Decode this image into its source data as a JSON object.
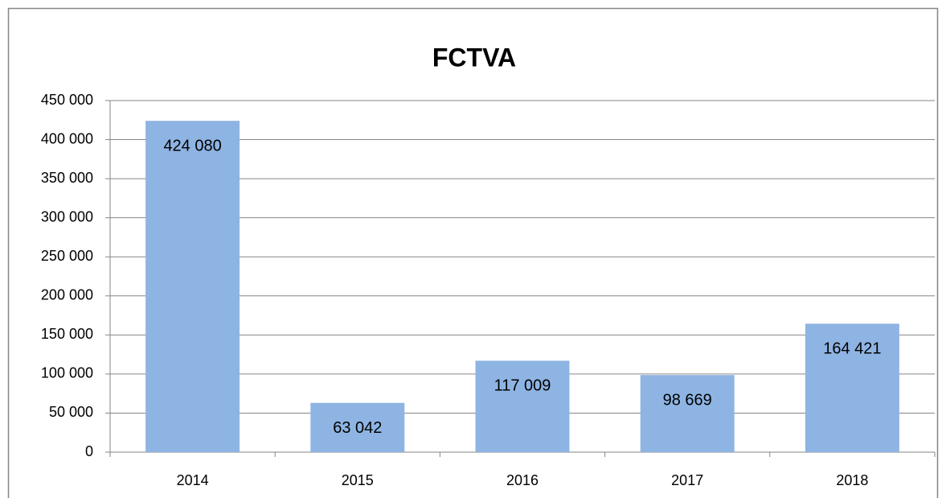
{
  "chart_data": {
    "type": "bar",
    "title": "FCTVA",
    "categories": [
      "2014",
      "2015",
      "2016",
      "2017",
      "2018"
    ],
    "values": [
      424080,
      63042,
      117009,
      98669,
      164421
    ],
    "value_labels": [
      "424 080",
      "63 042",
      "117 009",
      "98 669",
      "164 421"
    ],
    "color": "#8eb4e3",
    "ylim": [
      0,
      450000
    ],
    "yticks": [
      0,
      {
        "value": 50000,
        "label": "50 000"
      },
      {
        "value": 100000,
        "label": "100 000"
      },
      {
        "value": 150000,
        "label": "150 000"
      },
      {
        "value": 200000,
        "label": "200 000"
      },
      {
        "value": 250000,
        "label": "250 000"
      },
      {
        "value": 300000,
        "label": "300 000"
      },
      {
        "value": 350000,
        "label": "350 000"
      },
      {
        "value": 400000,
        "label": "400 000"
      },
      {
        "value": 450000,
        "label": "450 000"
      }
    ],
    "grid": true
  }
}
